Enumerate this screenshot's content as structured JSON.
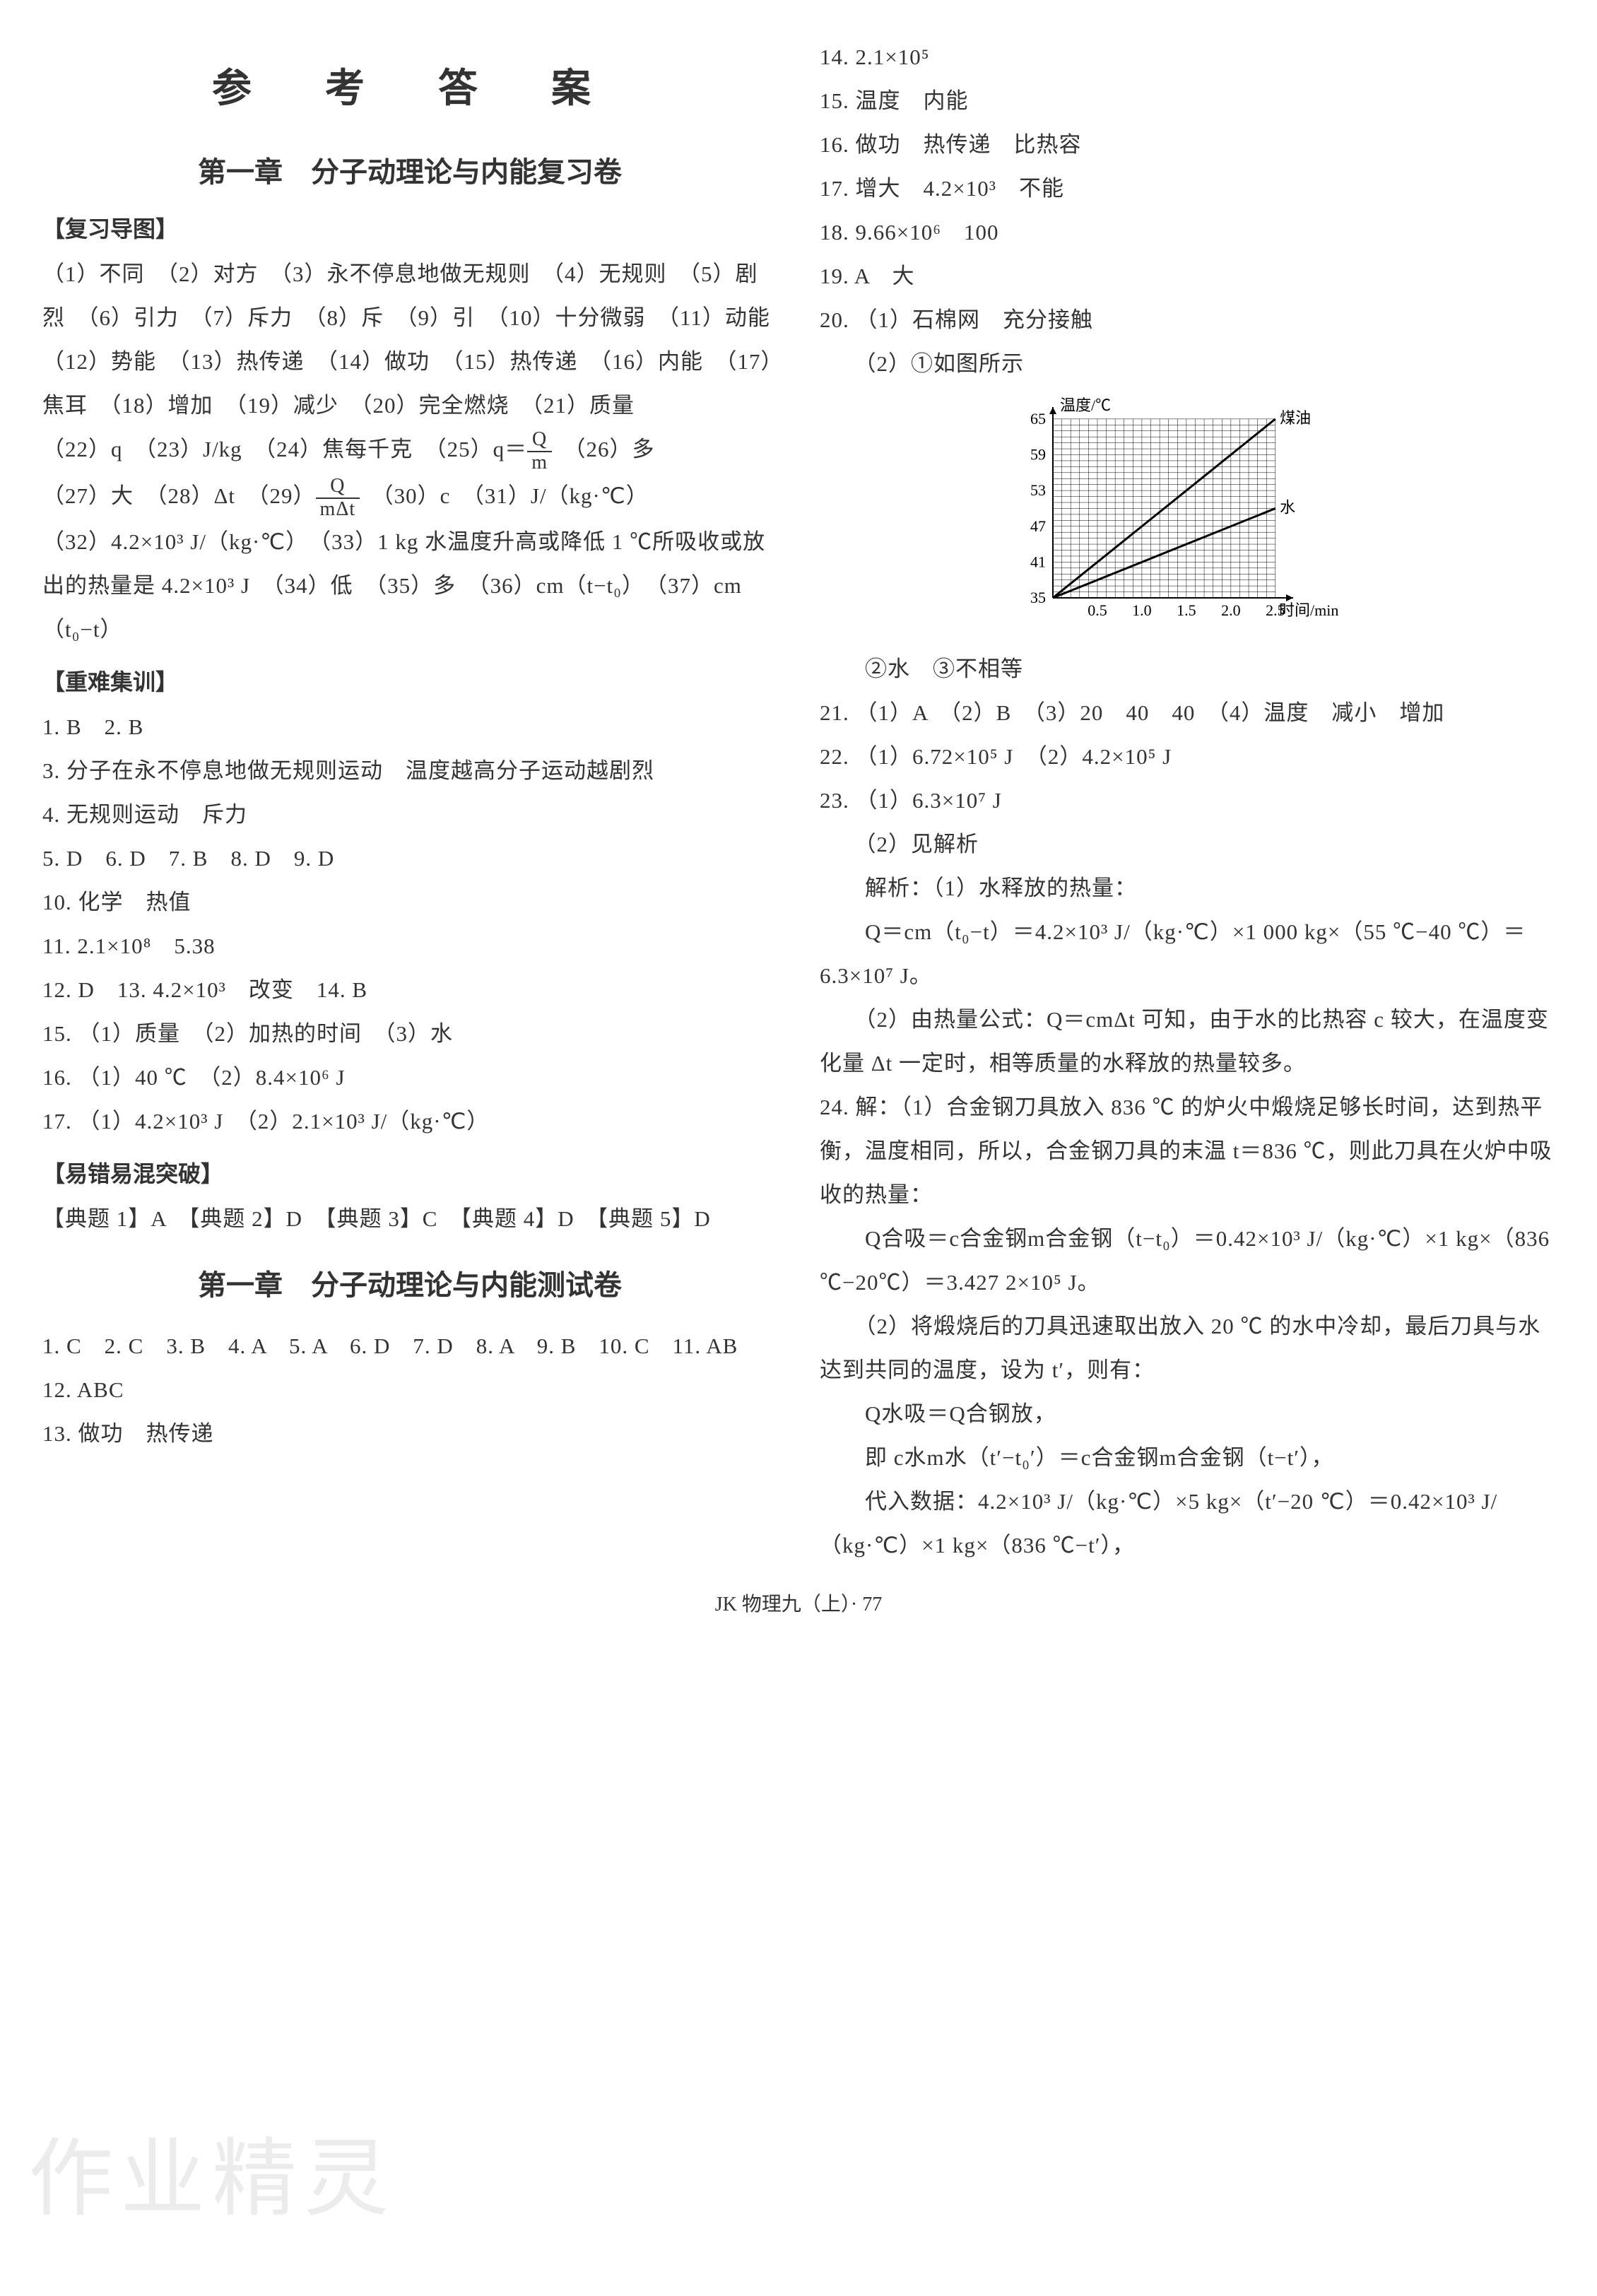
{
  "mainTitle": "参　考　答　案",
  "footer": "JK 物理九（上）· 77",
  "watermark": "作业精灵",
  "left": {
    "chapter1": "第一章　分子动理论与内能复习卷",
    "sec1": "【复习导图】",
    "p1": "（1）不同　（2）对方　（3）永不停息地做无规则　（4）无规则　（5）剧烈　（6）引力　（7）斥力　（8）斥　（9）引　（10）十分微弱　（11）动能　（12）势能　（13）热传递　（14）做功　（15）热传递　（16）内能　（17）焦耳　（18）增加　（19）减少　（20）完全燃烧　（21）质量",
    "p2a": "（22）q　（23）J/kg　（24）焦每千克　（25）q＝",
    "p2fracN": "Q",
    "p2fracD": "m",
    "p2b": "　（26）多",
    "p3a": "（27）大　（28）Δt　（29）",
    "p3fracN": "Q",
    "p3fracD": "mΔt",
    "p3b": "　（30）c　（31）J/（kg·℃）",
    "p4": "（32）4.2×10³ J/（kg·℃）　（33）1 kg 水温度升高或降低 1 ℃所吸收或放出的热量是 4.2×10³ J　（34）低　（35）多　（36）cm（t−t₀）　（37）cm（t₀−t）",
    "sec2": "【重难集训】",
    "q1": "1. B　2. B",
    "q3": "3. 分子在永不停息地做无规则运动　温度越高分子运动越剧烈",
    "q4": "4. 无规则运动　斥力",
    "q5": "5. D　6. D　7. B　8. D　9. D",
    "q10": "10. 化学　热值",
    "q11": "11. 2.1×10⁸　5.38",
    "q12": "12. D　13. 4.2×10³　改变　14. B",
    "q15": "15. （1）质量　（2）加热的时间　（3）水",
    "q16": "16. （1）40 ℃　（2）8.4×10⁶ J",
    "q17": "17. （1）4.2×10³ J　（2）2.1×10³ J/（kg·℃）",
    "sec3": "【易错易混突破】",
    "ex": "【典题 1】A　【典题 2】D　【典题 3】C　【典题 4】D　【典题 5】D",
    "chapter2": "第一章　分子动理论与内能测试卷",
    "t1": "1. C　2. C　3. B　4. A　5. A　6. D　7. D　8. A　9. B　10. C　11. AB　12. ABC",
    "t13": "13. 做功　热传递"
  },
  "right": {
    "r14": "14. 2.1×10⁵",
    "r15": "15. 温度　内能",
    "r16": "16. 做功　热传递　比热容",
    "r17": "17. 增大　4.2×10³　不能",
    "r18": "18. 9.66×10⁶　100",
    "r19": "19. A　大",
    "r20a": "20. （1）石棉网　充分接触",
    "r20b": "　　（2）①如图所示",
    "r20c": "　　②水　③不相等",
    "r21": "21. （1）A　（2）B　（3）20　40　40　（4）温度　减小　增加",
    "r22": "22. （1）6.72×10⁵ J　（2）4.2×10⁵ J",
    "r23a": "23. （1）6.3×10⁷ J",
    "r23b": "　　（2）见解析",
    "r23c": "　　解析：（1）水释放的热量：",
    "r23d": "　　Q＝cm（t₀−t）＝4.2×10³ J/（kg·℃）×1 000 kg×（55 ℃−40 ℃）＝6.3×10⁷ J。",
    "r23e": "　　（2）由热量公式：Q＝cmΔt 可知，由于水的比热容 c 较大，在温度变化量 Δt 一定时，相等质量的水释放的热量较多。",
    "r24a": "24. 解：（1）合金钢刀具放入 836 ℃ 的炉火中煅烧足够长时间，达到热平衡，温度相同，所以，合金钢刀具的末温 t＝836 ℃，则此刀具在火炉中吸收的热量：",
    "r24b": "　　Q合吸＝c合金钢m合金钢（t−t₀）＝0.42×10³ J/（kg·℃）×1 kg×（836 ℃−20℃）＝3.427 2×10⁵ J。",
    "r24c": "　　（2）将煅烧后的刀具迅速取出放入 20 ℃ 的水中冷却，最后刀具与水达到共同的温度，设为 t′，则有：",
    "r24d": "　　Q水吸＝Q合钢放，",
    "r24e": "　　即 c水m水（t′−t₀′）＝c合金钢m合金钢（t−t′），",
    "r24f": "　　代入数据：4.2×10³ J/（kg·℃）×5 kg×（t′−20 ℃）＝0.42×10³ J/（kg·℃）×1 kg×（836 ℃−t′），"
  },
  "chart": {
    "type": "line",
    "title_y": "温度/℃",
    "title_x": "时间/min",
    "xlim": [
      0,
      2.7
    ],
    "ylim": [
      35,
      67
    ],
    "xticks": [
      0.5,
      1.0,
      1.5,
      2.0,
      2.5
    ],
    "yticks": [
      35,
      41,
      47,
      53,
      59,
      65
    ],
    "grid_color": "#000000",
    "bg_color": "#ffffff",
    "axis_color": "#000000",
    "font_size": 22,
    "series": [
      {
        "label": "煤油",
        "label_pos": [
          2.55,
          65
        ],
        "points": [
          [
            0,
            35
          ],
          [
            2.5,
            65
          ]
        ],
        "color": "#000000",
        "width": 3
      },
      {
        "label": "水",
        "label_pos": [
          2.55,
          50
        ],
        "points": [
          [
            0,
            35
          ],
          [
            2.5,
            50
          ]
        ],
        "color": "#000000",
        "width": 3
      }
    ]
  }
}
